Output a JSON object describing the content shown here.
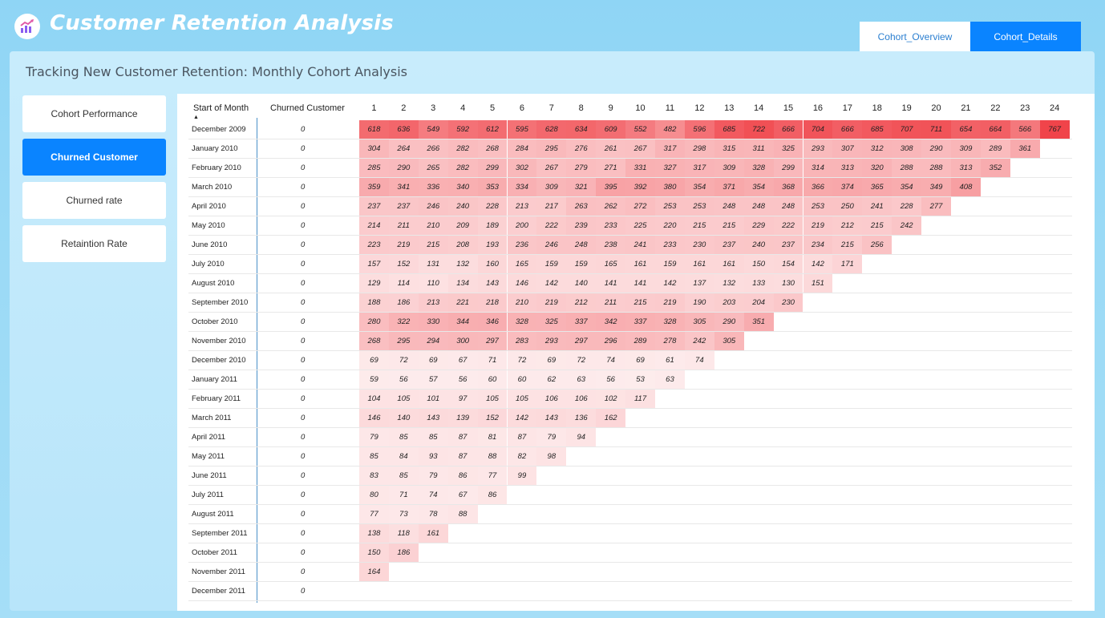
{
  "app": {
    "title": "Customer Retention Analysis",
    "logo_icon": "chart-growth-icon"
  },
  "tabs": [
    {
      "label": "Cohort_Overview",
      "active": false
    },
    {
      "label": "Cohort_Details",
      "active": true
    }
  ],
  "panel": {
    "title": "Tracking New Customer Retention: Monthly Cohort Analysis"
  },
  "nav": [
    {
      "label": "Cohort Performance",
      "active": false
    },
    {
      "label": "Churned Customer",
      "active": true
    },
    {
      "label": "Churned rate",
      "active": false
    },
    {
      "label": "Retaintion Rate",
      "active": false
    }
  ],
  "matrix": {
    "header_start": "Start of Month",
    "header_churn": "Churned Customer",
    "sort_indicator": "▲",
    "periods": [
      "1",
      "2",
      "3",
      "4",
      "5",
      "6",
      "7",
      "8",
      "9",
      "10",
      "11",
      "12",
      "13",
      "14",
      "15",
      "16",
      "17",
      "18",
      "19",
      "20",
      "21",
      "22",
      "23",
      "24"
    ],
    "heat_color": "#f0444a",
    "max_value": 767,
    "rows": [
      {
        "month": "December 2009",
        "churned": "0",
        "values": [
          618,
          636,
          549,
          592,
          612,
          595,
          628,
          634,
          609,
          552,
          482,
          596,
          685,
          722,
          666,
          704,
          666,
          685,
          707,
          711,
          654,
          664,
          566,
          767
        ]
      },
      {
        "month": "January 2010",
        "churned": "0",
        "values": [
          304,
          264,
          266,
          282,
          268,
          284,
          295,
          276,
          261,
          267,
          317,
          298,
          315,
          311,
          325,
          293,
          307,
          312,
          308,
          290,
          309,
          289,
          361
        ]
      },
      {
        "month": "February 2010",
        "churned": "0",
        "values": [
          285,
          290,
          265,
          282,
          299,
          302,
          267,
          279,
          271,
          331,
          327,
          317,
          309,
          328,
          299,
          314,
          313,
          320,
          288,
          288,
          313,
          352
        ]
      },
      {
        "month": "March 2010",
        "churned": "0",
        "values": [
          359,
          341,
          336,
          340,
          353,
          334,
          309,
          321,
          395,
          392,
          380,
          354,
          371,
          354,
          368,
          366,
          374,
          365,
          354,
          349,
          408
        ]
      },
      {
        "month": "April 2010",
        "churned": "0",
        "values": [
          237,
          237,
          246,
          240,
          228,
          213,
          217,
          263,
          262,
          272,
          253,
          253,
          248,
          248,
          248,
          253,
          250,
          241,
          228,
          277
        ]
      },
      {
        "month": "May 2010",
        "churned": "0",
        "values": [
          214,
          211,
          210,
          209,
          189,
          200,
          222,
          239,
          233,
          225,
          220,
          215,
          215,
          229,
          222,
          219,
          212,
          215,
          242
        ]
      },
      {
        "month": "June 2010",
        "churned": "0",
        "values": [
          223,
          219,
          215,
          208,
          193,
          236,
          246,
          248,
          238,
          241,
          233,
          230,
          237,
          240,
          237,
          234,
          215,
          256
        ]
      },
      {
        "month": "July 2010",
        "churned": "0",
        "values": [
          157,
          152,
          131,
          132,
          160,
          165,
          159,
          159,
          165,
          161,
          159,
          161,
          161,
          150,
          154,
          142,
          171
        ]
      },
      {
        "month": "August 2010",
        "churned": "0",
        "values": [
          129,
          114,
          110,
          134,
          143,
          146,
          142,
          140,
          141,
          141,
          142,
          137,
          132,
          133,
          130,
          151
        ]
      },
      {
        "month": "September 2010",
        "churned": "0",
        "values": [
          188,
          186,
          213,
          221,
          218,
          210,
          219,
          212,
          211,
          215,
          219,
          190,
          203,
          204,
          230
        ]
      },
      {
        "month": "October 2010",
        "churned": "0",
        "values": [
          280,
          322,
          330,
          344,
          346,
          328,
          325,
          337,
          342,
          337,
          328,
          305,
          290,
          351
        ]
      },
      {
        "month": "November 2010",
        "churned": "0",
        "values": [
          268,
          295,
          294,
          300,
          297,
          283,
          293,
          297,
          296,
          289,
          278,
          242,
          305
        ]
      },
      {
        "month": "December 2010",
        "churned": "0",
        "values": [
          69,
          72,
          69,
          67,
          71,
          72,
          69,
          72,
          74,
          69,
          61,
          74
        ]
      },
      {
        "month": "January 2011",
        "churned": "0",
        "values": [
          59,
          56,
          57,
          56,
          60,
          60,
          62,
          63,
          56,
          53,
          63
        ]
      },
      {
        "month": "February 2011",
        "churned": "0",
        "values": [
          104,
          105,
          101,
          97,
          105,
          105,
          106,
          106,
          102,
          117
        ]
      },
      {
        "month": "March 2011",
        "churned": "0",
        "values": [
          146,
          140,
          143,
          139,
          152,
          142,
          143,
          136,
          162
        ]
      },
      {
        "month": "April 2011",
        "churned": "0",
        "values": [
          79,
          85,
          85,
          87,
          81,
          87,
          79,
          94
        ]
      },
      {
        "month": "May 2011",
        "churned": "0",
        "values": [
          85,
          84,
          93,
          87,
          88,
          82,
          98
        ]
      },
      {
        "month": "June 2011",
        "churned": "0",
        "values": [
          83,
          85,
          79,
          86,
          77,
          99
        ]
      },
      {
        "month": "July 2011",
        "churned": "0",
        "values": [
          80,
          71,
          74,
          67,
          86
        ]
      },
      {
        "month": "August 2011",
        "churned": "0",
        "values": [
          77,
          73,
          78,
          88
        ]
      },
      {
        "month": "September 2011",
        "churned": "0",
        "values": [
          138,
          118,
          161
        ]
      },
      {
        "month": "October 2011",
        "churned": "0",
        "values": [
          150,
          186
        ]
      },
      {
        "month": "November 2011",
        "churned": "0",
        "values": [
          164
        ]
      },
      {
        "month": "December 2011",
        "churned": "0",
        "values": []
      }
    ]
  }
}
